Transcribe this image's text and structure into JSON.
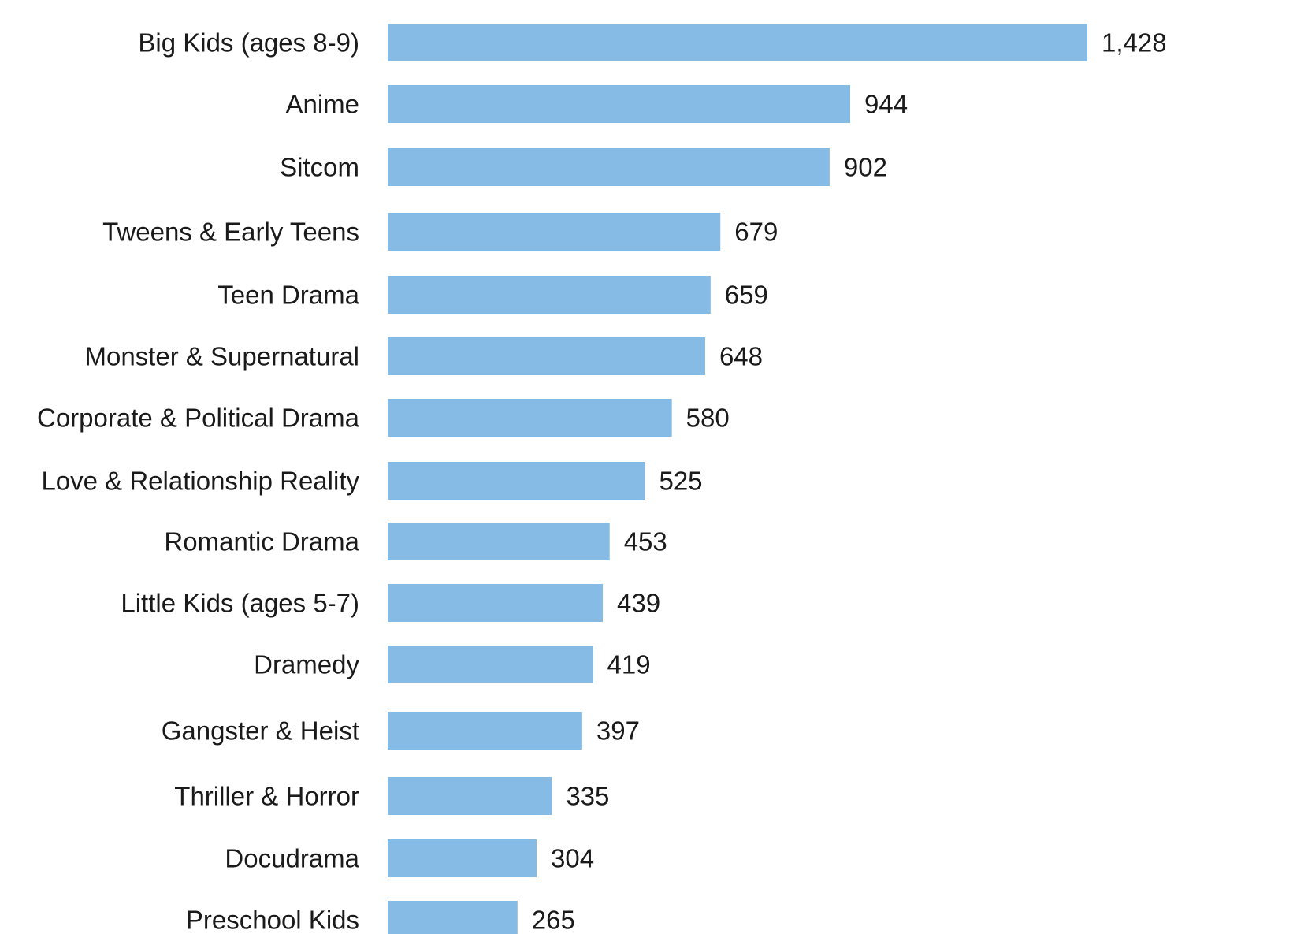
{
  "chart_data": {
    "type": "bar",
    "orientation": "horizontal",
    "bar_color": "#85bbe4",
    "text_color": "#1a1a1a",
    "categories": [
      "Big Kids (ages 8-9)",
      "Anime",
      "Sitcom",
      "Tweens & Early Teens",
      "Teen Drama",
      "Monster & Supernatural",
      "Corporate & Political Drama",
      "Love & Relationship Reality",
      "Romantic Drama",
      "Little Kids (ages 5-7)",
      "Dramedy",
      "Gangster & Heist",
      "Thriller & Horror",
      "Docudrama",
      "Preschool Kids"
    ],
    "values": [
      1428,
      944,
      902,
      679,
      659,
      648,
      580,
      525,
      453,
      439,
      419,
      397,
      335,
      304,
      265
    ],
    "value_labels": [
      "1,428",
      "944",
      "902",
      "679",
      "659",
      "648",
      "580",
      "525",
      "453",
      "439",
      "419",
      "397",
      "335",
      "304",
      "265"
    ],
    "xlim": [
      0,
      1428
    ]
  }
}
